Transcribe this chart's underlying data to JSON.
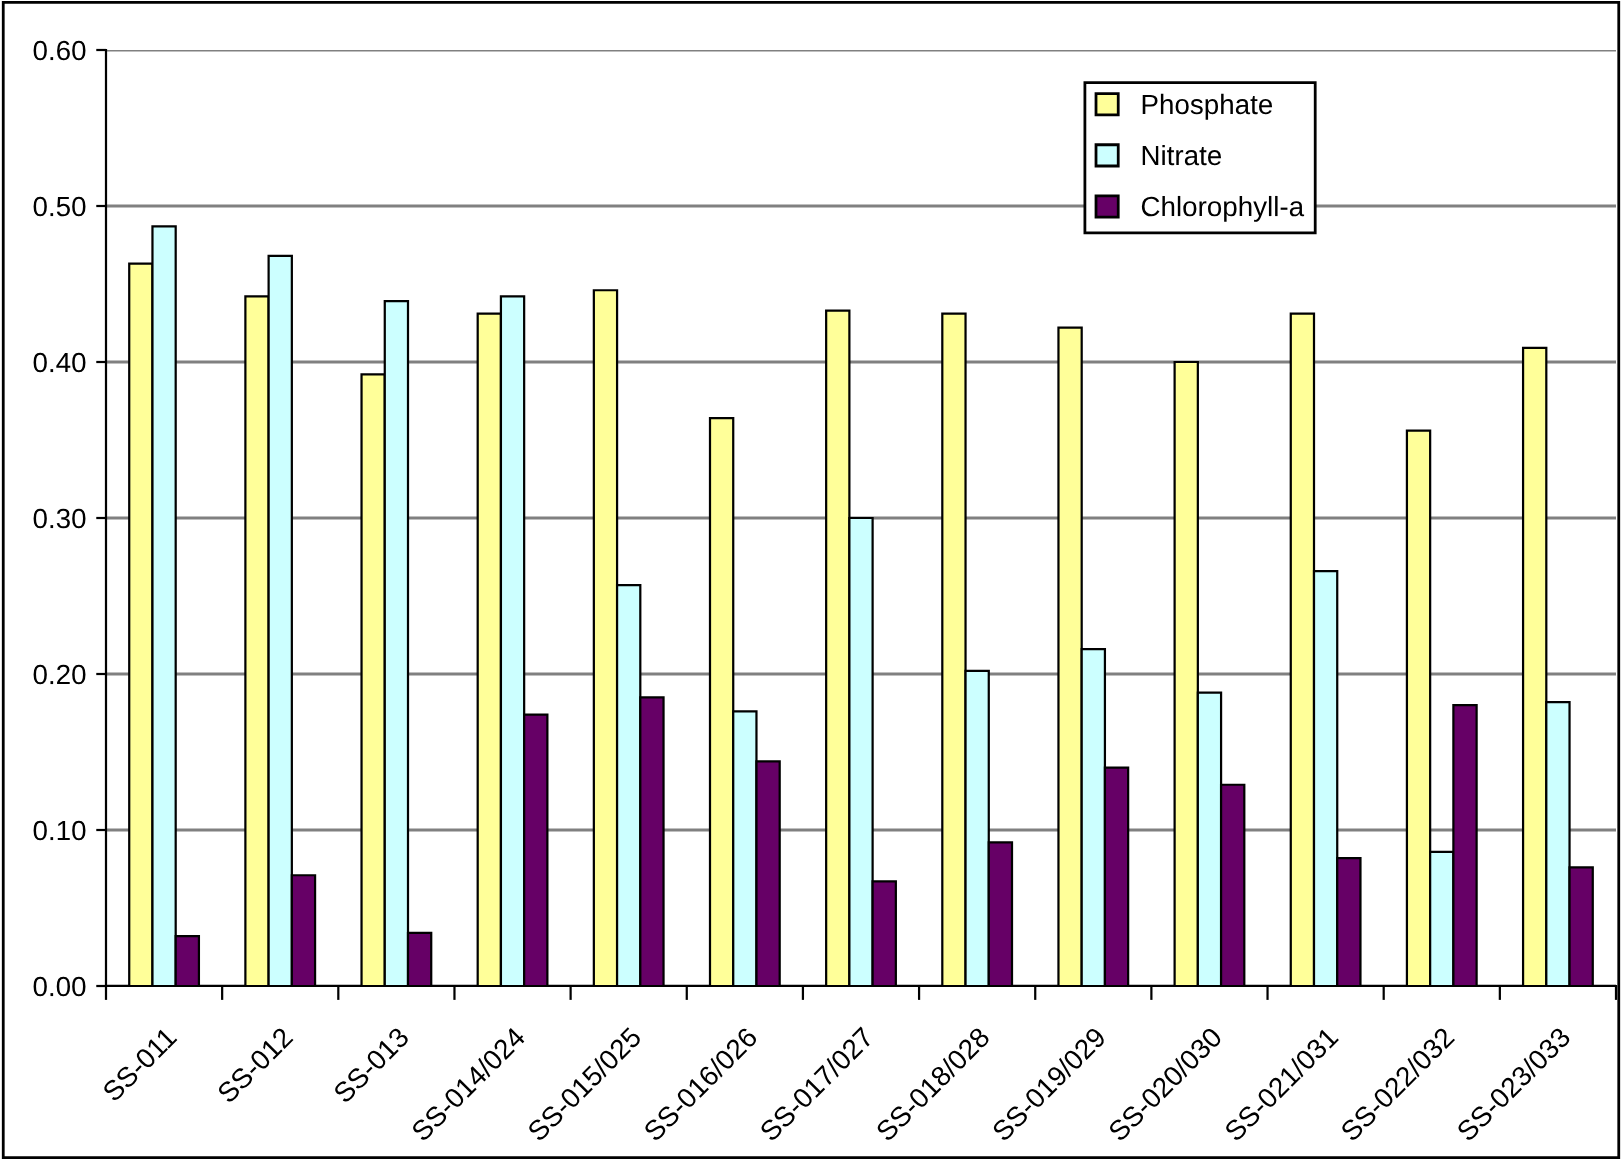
{
  "chart_data": {
    "type": "bar",
    "categories": [
      "SS-011",
      "SS-012",
      "SS-013",
      "SS-014/024",
      "SS-015/025",
      "SS-016/026",
      "SS-017/027",
      "SS-018/028",
      "SS-019/029",
      "SS-020/030",
      "SS-021/031",
      "SS-022/032",
      "SS-023/033"
    ],
    "series": [
      {
        "name": "Phosphate",
        "color": "#ffff99",
        "values": [
          0.463,
          0.442,
          0.392,
          0.431,
          0.446,
          0.364,
          0.433,
          0.431,
          0.422,
          0.4,
          0.431,
          0.356,
          0.409
        ]
      },
      {
        "name": "Nitrate",
        "color": "#ccffff",
        "values": [
          0.487,
          0.468,
          0.439,
          0.442,
          0.257,
          0.176,
          0.3,
          0.202,
          0.216,
          0.188,
          0.266,
          0.086,
          0.182
        ]
      },
      {
        "name": "Chlorophyll-a",
        "color": "#660066",
        "values": [
          0.032,
          0.071,
          0.034,
          0.174,
          0.185,
          0.144,
          0.067,
          0.092,
          0.14,
          0.129,
          0.082,
          0.18,
          0.076
        ]
      }
    ],
    "ylim": [
      0,
      0.6
    ],
    "yticks": [
      {
        "value": 0,
        "label": "0.00"
      },
      {
        "value": 0.1,
        "label": "0.10"
      },
      {
        "value": 0.2,
        "label": "0.20"
      },
      {
        "value": 0.3,
        "label": "0.30"
      },
      {
        "value": 0.4,
        "label": "0.40"
      },
      {
        "value": 0.5,
        "label": "0.50"
      },
      {
        "value": 0.6,
        "label": "0.60"
      }
    ],
    "grid": "y",
    "legend": "top right"
  }
}
